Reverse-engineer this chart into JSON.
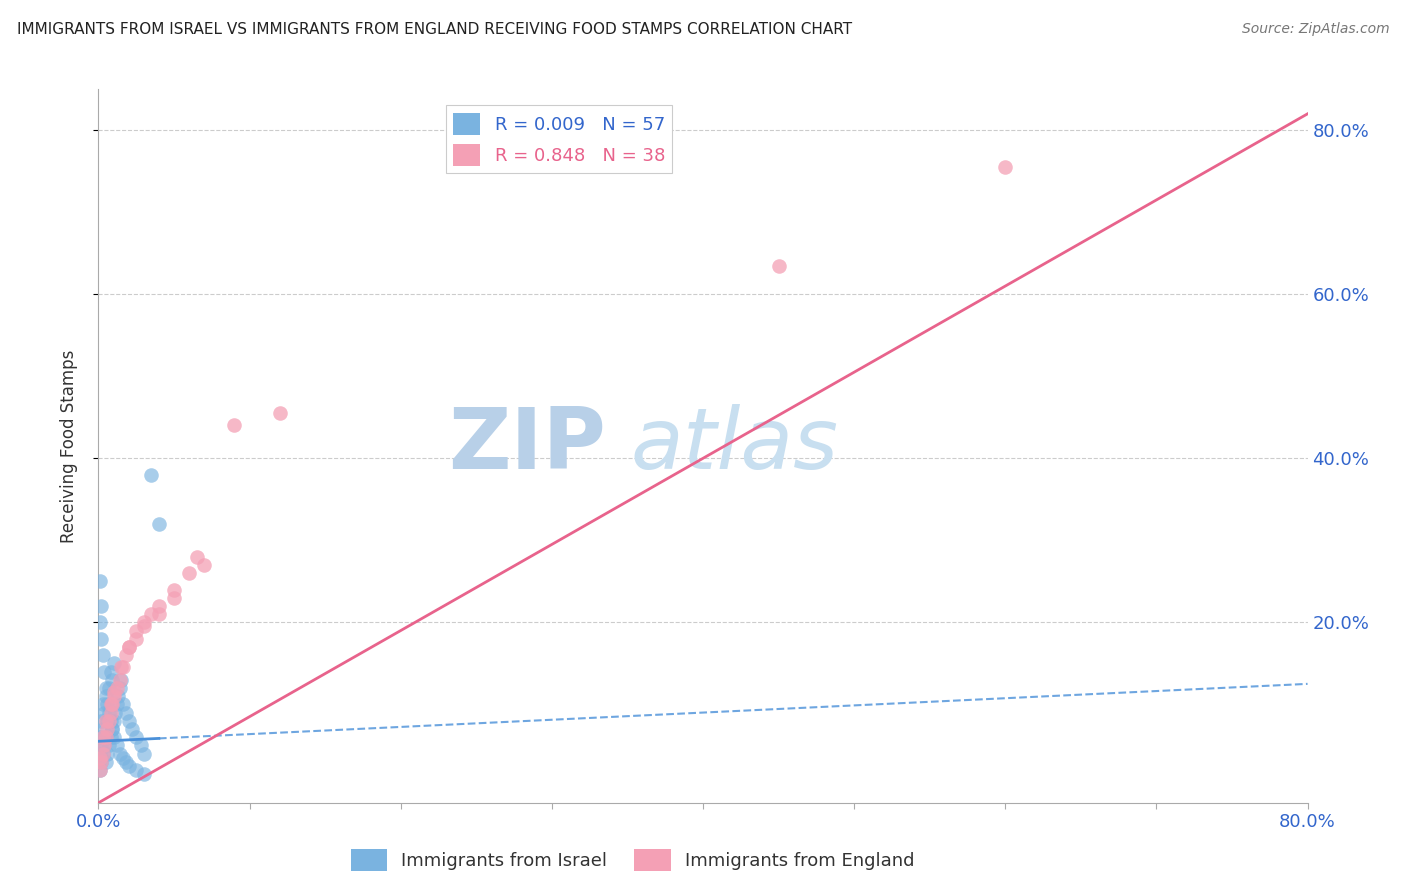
{
  "title": "IMMIGRANTS FROM ISRAEL VS IMMIGRANTS FROM ENGLAND RECEIVING FOOD STAMPS CORRELATION CHART",
  "source": "Source: ZipAtlas.com",
  "ylabel": "Receiving Food Stamps",
  "israel_R": 0.009,
  "israel_N": 57,
  "england_R": 0.848,
  "england_N": 38,
  "israel_color": "#7ab3e0",
  "england_color": "#f4a0b5",
  "israel_line_color": "#4a90d9",
  "england_line_color": "#e8638c",
  "watermark_zip": "ZIP",
  "watermark_atlas": "atlas",
  "watermark_color": "#cce0f0",
  "xlim": [
    0.0,
    0.8
  ],
  "ylim": [
    -0.02,
    0.85
  ],
  "israel_scatter_x": [
    0.001,
    0.001,
    0.001,
    0.002,
    0.002,
    0.002,
    0.003,
    0.003,
    0.003,
    0.004,
    0.004,
    0.005,
    0.005,
    0.005,
    0.006,
    0.006,
    0.007,
    0.007,
    0.008,
    0.008,
    0.009,
    0.009,
    0.01,
    0.01,
    0.011,
    0.012,
    0.013,
    0.014,
    0.015,
    0.016,
    0.018,
    0.02,
    0.022,
    0.025,
    0.028,
    0.03,
    0.001,
    0.001,
    0.002,
    0.002,
    0.003,
    0.004,
    0.005,
    0.006,
    0.007,
    0.008,
    0.009,
    0.01,
    0.012,
    0.014,
    0.016,
    0.018,
    0.02,
    0.025,
    0.03,
    0.035,
    0.04
  ],
  "israel_scatter_y": [
    0.04,
    0.06,
    0.02,
    0.05,
    0.08,
    0.03,
    0.07,
    0.1,
    0.04,
    0.09,
    0.05,
    0.11,
    0.06,
    0.03,
    0.08,
    0.04,
    0.12,
    0.05,
    0.14,
    0.06,
    0.13,
    0.07,
    0.15,
    0.08,
    0.09,
    0.1,
    0.11,
    0.12,
    0.13,
    0.1,
    0.09,
    0.08,
    0.07,
    0.06,
    0.05,
    0.04,
    0.2,
    0.25,
    0.18,
    0.22,
    0.16,
    0.14,
    0.12,
    0.1,
    0.09,
    0.08,
    0.07,
    0.06,
    0.05,
    0.04,
    0.035,
    0.03,
    0.025,
    0.02,
    0.015,
    0.38,
    0.32
  ],
  "england_scatter_x": [
    0.001,
    0.002,
    0.003,
    0.004,
    0.005,
    0.006,
    0.007,
    0.008,
    0.009,
    0.01,
    0.012,
    0.014,
    0.016,
    0.018,
    0.02,
    0.025,
    0.03,
    0.035,
    0.04,
    0.05,
    0.06,
    0.07,
    0.001,
    0.003,
    0.005,
    0.008,
    0.01,
    0.015,
    0.02,
    0.025,
    0.03,
    0.04,
    0.05,
    0.45,
    0.6,
    0.065,
    0.09,
    0.12
  ],
  "england_scatter_y": [
    0.02,
    0.03,
    0.04,
    0.05,
    0.06,
    0.07,
    0.08,
    0.09,
    0.1,
    0.11,
    0.12,
    0.13,
    0.145,
    0.16,
    0.17,
    0.19,
    0.2,
    0.21,
    0.22,
    0.24,
    0.26,
    0.27,
    0.035,
    0.06,
    0.08,
    0.1,
    0.115,
    0.145,
    0.17,
    0.18,
    0.195,
    0.21,
    0.23,
    0.635,
    0.755,
    0.28,
    0.44,
    0.455
  ],
  "israel_trend_x0": 0.0,
  "israel_trend_x1": 0.8,
  "israel_trend_y0": 0.055,
  "israel_trend_y1": 0.125,
  "england_trend_x0": 0.0,
  "england_trend_x1": 0.8,
  "england_trend_y0": -0.02,
  "england_trend_y1": 0.82
}
